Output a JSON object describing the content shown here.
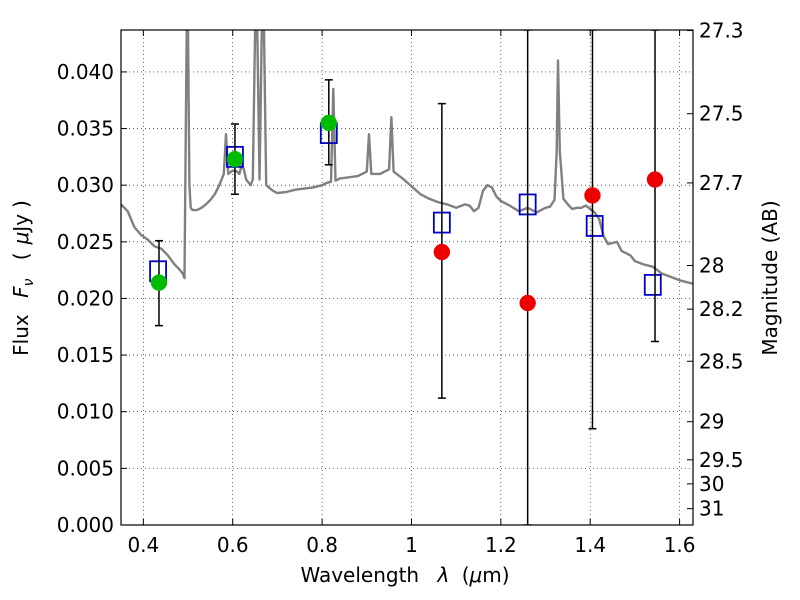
{
  "chart_data": {
    "type": "scatter",
    "xlabel": "Wavelength",
    "xlabel_symbol": "λ",
    "xlabel_unit_open": "(",
    "xlabel_unit_mu": "μ",
    "xlabel_unit_rest": "m)",
    "ylabel": "Flux",
    "ylabel_symbol": "F",
    "ylabel_subscript": "ν",
    "ylabel_unit_open": "(",
    "ylabel_unit_mu": "μ",
    "ylabel_unit_rest": "Jy",
    "ylabel_unit_close": ")",
    "ylabel_right": "Magnitude (AB)",
    "xlim": [
      0.35,
      1.63
    ],
    "ylim": [
      0.0,
      0.0437
    ],
    "grid": "dotted",
    "xticks": [
      {
        "v": 0.4,
        "label": "0.4"
      },
      {
        "v": 0.6,
        "label": "0.6"
      },
      {
        "v": 0.8,
        "label": "0.8"
      },
      {
        "v": 1.0,
        "label": "1"
      },
      {
        "v": 1.2,
        "label": "1.2"
      },
      {
        "v": 1.4,
        "label": "1.4"
      },
      {
        "v": 1.6,
        "label": "1.6"
      }
    ],
    "yticks": [
      {
        "v": 0.0,
        "label": "0.000"
      },
      {
        "v": 0.005,
        "label": "0.005"
      },
      {
        "v": 0.01,
        "label": "0.010"
      },
      {
        "v": 0.015,
        "label": "0.015"
      },
      {
        "v": 0.02,
        "label": "0.020"
      },
      {
        "v": 0.025,
        "label": "0.025"
      },
      {
        "v": 0.03,
        "label": "0.030"
      },
      {
        "v": 0.035,
        "label": "0.035"
      },
      {
        "v": 0.04,
        "label": "0.040"
      }
    ],
    "mag_ticks": [
      {
        "mag": 27.3,
        "label": "27.3"
      },
      {
        "mag": 27.5,
        "label": "27.5"
      },
      {
        "mag": 27.7,
        "label": "27.7"
      },
      {
        "mag": 28.0,
        "label": "28"
      },
      {
        "mag": 28.2,
        "label": "28.2"
      },
      {
        "mag": 28.5,
        "label": "28.5"
      },
      {
        "mag": 29.0,
        "label": "29"
      },
      {
        "mag": 29.5,
        "label": "29.5"
      },
      {
        "mag": 30.0,
        "label": "30"
      },
      {
        "mag": 31.0,
        "label": "31"
      }
    ],
    "colors": {
      "template": "#808080",
      "model": "#0000cc",
      "detected": "#00bb00",
      "nondetected": "#ee0000",
      "errorbar": "#000000"
    },
    "template_spectrum": [
      [
        0.35,
        0.0283
      ],
      [
        0.365,
        0.0277
      ],
      [
        0.38,
        0.0263
      ],
      [
        0.395,
        0.0256
      ],
      [
        0.41,
        0.0252
      ],
      [
        0.425,
        0.0246
      ],
      [
        0.44,
        0.0244
      ],
      [
        0.455,
        0.0238
      ],
      [
        0.47,
        0.023
      ],
      [
        0.48,
        0.0226
      ],
      [
        0.488,
        0.0222
      ],
      [
        0.492,
        0.0218
      ],
      [
        0.495,
        0.035
      ],
      [
        0.497,
        0.0437
      ],
      [
        0.5,
        0.0437
      ],
      [
        0.503,
        0.03
      ],
      [
        0.506,
        0.028
      ],
      [
        0.51,
        0.0278
      ],
      [
        0.52,
        0.0278
      ],
      [
        0.53,
        0.028
      ],
      [
        0.54,
        0.0283
      ],
      [
        0.55,
        0.0287
      ],
      [
        0.56,
        0.0292
      ],
      [
        0.57,
        0.03
      ],
      [
        0.58,
        0.031
      ],
      [
        0.585,
        0.0345
      ],
      [
        0.59,
        0.031
      ],
      [
        0.6,
        0.0313
      ],
      [
        0.61,
        0.0312
      ],
      [
        0.615,
        0.031
      ],
      [
        0.62,
        0.0318
      ],
      [
        0.625,
        0.0314
      ],
      [
        0.63,
        0.0305
      ],
      [
        0.64,
        0.03
      ],
      [
        0.645,
        0.0305
      ],
      [
        0.65,
        0.0437
      ],
      [
        0.655,
        0.0437
      ],
      [
        0.66,
        0.0305
      ],
      [
        0.665,
        0.0437
      ],
      [
        0.67,
        0.0437
      ],
      [
        0.675,
        0.03
      ],
      [
        0.69,
        0.0295
      ],
      [
        0.7,
        0.0293
      ],
      [
        0.72,
        0.0294
      ],
      [
        0.74,
        0.0296
      ],
      [
        0.76,
        0.0297
      ],
      [
        0.78,
        0.0298
      ],
      [
        0.8,
        0.03
      ],
      [
        0.81,
        0.0302
      ],
      [
        0.82,
        0.0303
      ],
      [
        0.825,
        0.0385
      ],
      [
        0.83,
        0.0304
      ],
      [
        0.84,
        0.0306
      ],
      [
        0.86,
        0.0307
      ],
      [
        0.88,
        0.0308
      ],
      [
        0.9,
        0.0312
      ],
      [
        0.905,
        0.0345
      ],
      [
        0.91,
        0.031
      ],
      [
        0.93,
        0.031
      ],
      [
        0.94,
        0.0312
      ],
      [
        0.95,
        0.0314
      ],
      [
        0.955,
        0.036
      ],
      [
        0.96,
        0.0312
      ],
      [
        0.98,
        0.0306
      ],
      [
        1.0,
        0.0299
      ],
      [
        1.02,
        0.0292
      ],
      [
        1.04,
        0.0288
      ],
      [
        1.06,
        0.0285
      ],
      [
        1.08,
        0.0283
      ],
      [
        1.1,
        0.028
      ],
      [
        1.12,
        0.0283
      ],
      [
        1.13,
        0.0282
      ],
      [
        1.14,
        0.0277
      ],
      [
        1.15,
        0.028
      ],
      [
        1.16,
        0.0295
      ],
      [
        1.17,
        0.03
      ],
      [
        1.18,
        0.0298
      ],
      [
        1.19,
        0.029
      ],
      [
        1.2,
        0.0286
      ],
      [
        1.22,
        0.0282
      ],
      [
        1.24,
        0.0277
      ],
      [
        1.26,
        0.028
      ],
      [
        1.27,
        0.0278
      ],
      [
        1.28,
        0.0276
      ],
      [
        1.29,
        0.0278
      ],
      [
        1.3,
        0.028
      ],
      [
        1.31,
        0.0281
      ],
      [
        1.32,
        0.0287
      ],
      [
        1.325,
        0.033
      ],
      [
        1.328,
        0.041
      ],
      [
        1.332,
        0.033
      ],
      [
        1.34,
        0.0288
      ],
      [
        1.35,
        0.0283
      ],
      [
        1.36,
        0.0279
      ],
      [
        1.37,
        0.028
      ],
      [
        1.38,
        0.028
      ],
      [
        1.39,
        0.0282
      ],
      [
        1.4,
        0.0279
      ],
      [
        1.41,
        0.0276
      ],
      [
        1.42,
        0.027
      ],
      [
        1.43,
        0.0255
      ],
      [
        1.44,
        0.0248
      ],
      [
        1.46,
        0.025
      ],
      [
        1.47,
        0.0242
      ],
      [
        1.48,
        0.024
      ],
      [
        1.49,
        0.0238
      ],
      [
        1.5,
        0.0233
      ],
      [
        1.52,
        0.023
      ],
      [
        1.54,
        0.0228
      ],
      [
        1.56,
        0.0222
      ],
      [
        1.58,
        0.0219
      ],
      [
        1.6,
        0.0216
      ],
      [
        1.62,
        0.0214
      ],
      [
        1.63,
        0.0213
      ]
    ],
    "model_points": [
      {
        "x": 0.433,
        "y": 0.0224
      },
      {
        "x": 0.605,
        "y": 0.0325
      },
      {
        "x": 0.815,
        "y": 0.0346
      },
      {
        "x": 1.068,
        "y": 0.0267
      },
      {
        "x": 1.26,
        "y": 0.0283
      },
      {
        "x": 1.41,
        "y": 0.0264
      },
      {
        "x": 1.54,
        "y": 0.0212
      }
    ],
    "observed_points": [
      {
        "x": 0.435,
        "y": 0.0214,
        "err_low": 0.0176,
        "err_high": 0.0251,
        "status": "detected"
      },
      {
        "x": 0.605,
        "y": 0.0323,
        "err_low": 0.0292,
        "err_high": 0.0354,
        "status": "detected"
      },
      {
        "x": 0.815,
        "y": 0.0355,
        "err_low": 0.0318,
        "err_high": 0.0393,
        "status": "detected"
      },
      {
        "x": 1.068,
        "y": 0.0241,
        "err_low": 0.0112,
        "err_high": 0.0372,
        "status": "nondetected"
      },
      {
        "x": 1.26,
        "y": 0.0196,
        "err_low": 0.0,
        "err_high": 0.0437,
        "status": "nondetected"
      },
      {
        "x": 1.405,
        "y": 0.0291,
        "err_low": 0.0085,
        "err_high": 0.0437,
        "status": "nondetected"
      },
      {
        "x": 1.545,
        "y": 0.0305,
        "err_low": 0.0162,
        "err_high": 0.0437,
        "status": "nondetected"
      }
    ]
  }
}
